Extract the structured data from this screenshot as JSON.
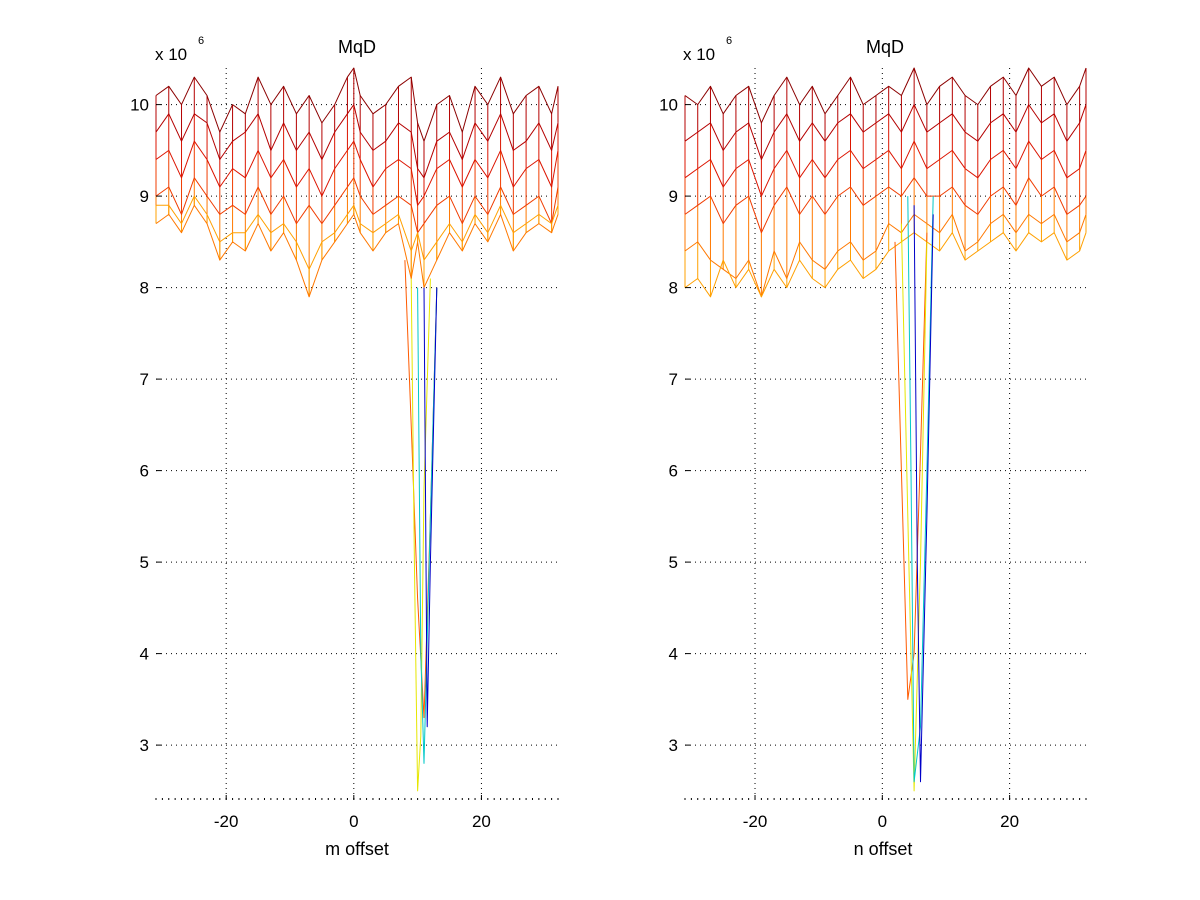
{
  "chart_data": [
    {
      "type": "line",
      "title": "MqD",
      "xlabel": "m offset",
      "ylabel": "",
      "y_exponent_prefix": "x 10",
      "y_exponent_power": "6",
      "xlim": [
        -31,
        32
      ],
      "ylim": [
        2.4,
        10.4
      ],
      "x_ticks": [
        -20,
        0,
        20
      ],
      "x_tick_labels": [
        "-20",
        "0",
        "20"
      ],
      "y_ticks": [
        3,
        4,
        5,
        6,
        7,
        8,
        9,
        10
      ],
      "y_tick_labels": [
        "3",
        "4",
        "5",
        "6",
        "7",
        "8",
        "9",
        "10"
      ],
      "grid": true,
      "colormap": "jet",
      "surface_trough": {
        "min_x": 10,
        "min_y": 2.5,
        "trough_x_range": [
          8,
          13
        ]
      },
      "profile_lines": [
        {
          "x": [
            -31,
            -29,
            -27,
            -25,
            -23,
            -21,
            -19,
            -17,
            -15,
            -13,
            -11,
            -9,
            -7,
            -5,
            -3,
            -1,
            0,
            1,
            3,
            5,
            7,
            9,
            10,
            11,
            13,
            15,
            17,
            19,
            21,
            23,
            25,
            27,
            29,
            31,
            32
          ],
          "y": [
            10.1,
            10.2,
            10.0,
            10.3,
            10.1,
            9.7,
            10.0,
            9.9,
            10.3,
            10.0,
            10.2,
            9.9,
            10.1,
            9.8,
            10.0,
            10.3,
            10.4,
            10.1,
            9.9,
            10.0,
            10.2,
            10.3,
            9.8,
            9.6,
            10.0,
            10.1,
            9.7,
            10.2,
            10.0,
            10.3,
            9.9,
            10.1,
            10.2,
            9.9,
            10.2
          ],
          "color": "#8b0000"
        },
        {
          "x": [
            -31,
            -29,
            -27,
            -25,
            -23,
            -21,
            -19,
            -17,
            -15,
            -13,
            -11,
            -9,
            -7,
            -5,
            -3,
            -1,
            0,
            1,
            3,
            5,
            7,
            9,
            10,
            11,
            13,
            15,
            17,
            19,
            21,
            23,
            25,
            27,
            29,
            31,
            32
          ],
          "y": [
            9.7,
            9.9,
            9.6,
            9.9,
            9.8,
            9.4,
            9.6,
            9.7,
            9.9,
            9.5,
            9.8,
            9.5,
            9.7,
            9.4,
            9.7,
            9.9,
            10.0,
            9.7,
            9.5,
            9.6,
            9.8,
            9.7,
            9.3,
            9.2,
            9.6,
            9.7,
            9.4,
            9.8,
            9.6,
            9.9,
            9.5,
            9.6,
            9.8,
            9.5,
            9.8
          ],
          "color": "#b40000"
        },
        {
          "x": [
            -31,
            -29,
            -27,
            -25,
            -23,
            -21,
            -19,
            -17,
            -15,
            -13,
            -11,
            -9,
            -7,
            -5,
            -3,
            -1,
            0,
            1,
            3,
            5,
            7,
            9,
            10,
            11,
            13,
            15,
            17,
            19,
            21,
            23,
            25,
            27,
            29,
            31,
            32
          ],
          "y": [
            9.4,
            9.5,
            9.2,
            9.6,
            9.4,
            9.1,
            9.3,
            9.2,
            9.5,
            9.2,
            9.4,
            9.1,
            9.3,
            9.0,
            9.3,
            9.5,
            9.6,
            9.4,
            9.1,
            9.3,
            9.4,
            9.3,
            8.9,
            9.0,
            9.3,
            9.4,
            9.1,
            9.4,
            9.2,
            9.5,
            9.1,
            9.3,
            9.4,
            9.1,
            9.5
          ],
          "color": "#dc1400"
        },
        {
          "x": [
            -31,
            -29,
            -27,
            -25,
            -23,
            -21,
            -19,
            -17,
            -15,
            -13,
            -11,
            -9,
            -7,
            -5,
            -3,
            -1,
            0,
            1,
            3,
            5,
            7,
            9,
            10,
            11,
            13,
            15,
            17,
            19,
            21,
            23,
            25,
            27,
            29,
            31,
            32
          ],
          "y": [
            9.0,
            9.1,
            8.8,
            9.2,
            9.0,
            8.8,
            8.9,
            8.8,
            9.1,
            8.8,
            9.0,
            8.7,
            8.9,
            8.7,
            8.9,
            9.1,
            9.2,
            9.0,
            8.8,
            8.9,
            9.0,
            8.9,
            8.6,
            8.7,
            8.9,
            9.0,
            8.7,
            9.0,
            8.8,
            9.1,
            8.8,
            8.9,
            9.0,
            8.7,
            9.1
          ],
          "color": "#f03c00"
        },
        {
          "x": [
            -31,
            -29,
            -27,
            -25,
            -23,
            -21,
            -19,
            -17,
            -15,
            -13,
            -11,
            -9,
            -7,
            -5,
            -3,
            -1,
            0,
            1,
            3,
            5,
            7,
            9,
            10,
            11,
            13,
            15,
            17,
            19,
            21,
            23,
            25,
            27,
            29,
            31,
            32
          ],
          "y": [
            8.7,
            8.8,
            8.6,
            8.9,
            8.7,
            8.3,
            8.5,
            8.4,
            8.7,
            8.4,
            8.6,
            8.3,
            7.9,
            8.3,
            8.5,
            8.7,
            8.8,
            8.6,
            8.4,
            8.6,
            8.7,
            8.1,
            8.5,
            8.0,
            8.3,
            8.6,
            8.4,
            8.7,
            8.5,
            8.8,
            8.4,
            8.6,
            8.7,
            8.6,
            8.8
          ],
          "color": "#ff7800"
        },
        {
          "x": [
            -31,
            -29,
            -27,
            -25,
            -23,
            -21,
            -19,
            -17,
            -15,
            -13,
            -11,
            -9,
            -7,
            -5,
            -3,
            -1,
            0,
            1,
            3,
            5,
            7,
            9,
            10,
            11,
            13,
            15,
            17,
            19,
            21,
            23,
            25,
            27,
            29,
            31,
            32
          ],
          "y": [
            8.9,
            8.9,
            8.7,
            9.0,
            8.8,
            8.5,
            8.6,
            8.6,
            8.8,
            8.6,
            8.7,
            8.5,
            8.2,
            8.5,
            8.6,
            8.8,
            8.9,
            8.7,
            8.6,
            8.7,
            8.8,
            8.4,
            8.6,
            8.3,
            8.5,
            8.7,
            8.5,
            8.8,
            8.6,
            8.9,
            8.6,
            8.7,
            8.8,
            8.7,
            8.9
          ],
          "color": "#ffa000"
        }
      ],
      "trough_lines": [
        {
          "x": [
            8,
            9,
            10,
            11,
            12,
            13
          ],
          "y": [
            8.3,
            6.5,
            4.6,
            3.3,
            5.5,
            8.0
          ],
          "color": "#ff5a00"
        },
        {
          "x": [
            9,
            9.5,
            10,
            10.5,
            11,
            12
          ],
          "y": [
            8.1,
            5.0,
            2.5,
            3.1,
            5.8,
            8.1
          ],
          "color": "#e6e600"
        },
        {
          "x": [
            10,
            10.5,
            11,
            12,
            13
          ],
          "y": [
            8.0,
            4.0,
            2.8,
            5.5,
            8.0
          ],
          "color": "#00c8c8"
        },
        {
          "x": [
            11,
            11.5,
            12,
            13
          ],
          "y": [
            8.0,
            3.2,
            5.0,
            8.0
          ],
          "color": "#0000c8"
        }
      ]
    },
    {
      "type": "line",
      "title": "MqD",
      "xlabel": "n offset",
      "ylabel": "",
      "y_exponent_prefix": "x 10",
      "y_exponent_power": "6",
      "xlim": [
        -31,
        32
      ],
      "ylim": [
        2.4,
        10.4
      ],
      "x_ticks": [
        -20,
        0,
        20
      ],
      "x_tick_labels": [
        "-20",
        "0",
        "20"
      ],
      "y_ticks": [
        3,
        4,
        5,
        6,
        7,
        8,
        9,
        10
      ],
      "y_tick_labels": [
        "3",
        "4",
        "5",
        "6",
        "7",
        "8",
        "9",
        "10"
      ],
      "grid": true,
      "colormap": "jet",
      "surface_trough": {
        "min_x": 5,
        "min_y": 2.5,
        "trough_x_range": [
          2,
          8
        ]
      },
      "profile_lines": [
        {
          "x": [
            -31,
            -29,
            -27,
            -25,
            -23,
            -21,
            -19,
            -17,
            -15,
            -13,
            -11,
            -9,
            -7,
            -5,
            -3,
            -1,
            1,
            3,
            5,
            7,
            9,
            11,
            13,
            15,
            17,
            19,
            21,
            23,
            25,
            27,
            29,
            31,
            32
          ],
          "y": [
            10.1,
            10.0,
            10.2,
            9.9,
            10.1,
            10.2,
            9.8,
            10.1,
            10.3,
            10.0,
            10.2,
            9.9,
            10.1,
            10.3,
            10.0,
            10.1,
            10.2,
            10.1,
            10.4,
            10.0,
            10.2,
            10.3,
            10.1,
            10.0,
            10.2,
            10.3,
            10.1,
            10.4,
            10.2,
            10.3,
            10.0,
            10.2,
            10.4
          ],
          "color": "#8b0000"
        },
        {
          "x": [
            -31,
            -29,
            -27,
            -25,
            -23,
            -21,
            -19,
            -17,
            -15,
            -13,
            -11,
            -9,
            -7,
            -5,
            -3,
            -1,
            1,
            3,
            5,
            7,
            9,
            11,
            13,
            15,
            17,
            19,
            21,
            23,
            25,
            27,
            29,
            31,
            32
          ],
          "y": [
            9.6,
            9.7,
            9.8,
            9.5,
            9.7,
            9.8,
            9.4,
            9.7,
            9.9,
            9.6,
            9.8,
            9.6,
            9.8,
            9.9,
            9.7,
            9.8,
            9.9,
            9.7,
            10.0,
            9.7,
            9.8,
            9.9,
            9.7,
            9.6,
            9.8,
            9.9,
            9.7,
            10.0,
            9.8,
            9.9,
            9.6,
            9.8,
            10.0
          ],
          "color": "#b40000"
        },
        {
          "x": [
            -31,
            -29,
            -27,
            -25,
            -23,
            -21,
            -19,
            -17,
            -15,
            -13,
            -11,
            -9,
            -7,
            -5,
            -3,
            -1,
            1,
            3,
            5,
            7,
            9,
            11,
            13,
            15,
            17,
            19,
            21,
            23,
            25,
            27,
            29,
            31,
            32
          ],
          "y": [
            9.2,
            9.3,
            9.4,
            9.1,
            9.3,
            9.4,
            9.0,
            9.3,
            9.5,
            9.2,
            9.4,
            9.2,
            9.4,
            9.5,
            9.3,
            9.4,
            9.5,
            9.3,
            9.6,
            9.3,
            9.4,
            9.5,
            9.3,
            9.2,
            9.4,
            9.5,
            9.3,
            9.6,
            9.4,
            9.5,
            9.2,
            9.3,
            9.5
          ],
          "color": "#dc1400"
        },
        {
          "x": [
            -31,
            -29,
            -27,
            -25,
            -23,
            -21,
            -19,
            -17,
            -15,
            -13,
            -11,
            -9,
            -7,
            -5,
            -3,
            -1,
            1,
            3,
            5,
            7,
            9,
            11,
            13,
            15,
            17,
            19,
            21,
            23,
            25,
            27,
            29,
            31,
            32
          ],
          "y": [
            8.8,
            8.9,
            9.0,
            8.7,
            8.9,
            9.0,
            8.6,
            8.9,
            9.1,
            8.8,
            9.0,
            8.8,
            9.0,
            9.1,
            8.9,
            9.0,
            9.1,
            9.0,
            9.2,
            9.0,
            9.0,
            9.1,
            8.9,
            8.8,
            9.0,
            9.1,
            8.9,
            9.2,
            9.0,
            9.1,
            8.8,
            8.9,
            9.0
          ],
          "color": "#f03c00"
        },
        {
          "x": [
            -31,
            -29,
            -27,
            -25,
            -23,
            -21,
            -19,
            -17,
            -15,
            -13,
            -11,
            -9,
            -7,
            -5,
            -3,
            -1,
            1,
            3,
            5,
            7,
            9,
            11,
            13,
            15,
            17,
            19,
            21,
            23,
            25,
            27,
            29,
            31,
            32
          ],
          "y": [
            8.4,
            8.5,
            8.3,
            8.2,
            8.1,
            8.3,
            7.9,
            8.4,
            8.1,
            8.5,
            8.3,
            8.2,
            8.4,
            8.5,
            8.3,
            8.4,
            8.7,
            8.6,
            8.8,
            8.7,
            8.6,
            8.8,
            8.4,
            8.5,
            8.7,
            8.8,
            8.6,
            8.8,
            8.7,
            8.8,
            8.5,
            8.6,
            8.8
          ],
          "color": "#ff7800"
        },
        {
          "x": [
            -31,
            -29,
            -27,
            -25,
            -23,
            -21,
            -19,
            -17,
            -15,
            -13,
            -11,
            -9,
            -7,
            -5,
            -3,
            -1,
            1,
            3,
            5,
            7,
            9,
            11,
            13,
            15,
            17,
            19,
            21,
            23,
            25,
            27,
            29,
            31,
            32
          ],
          "y": [
            8.0,
            8.1,
            7.9,
            8.3,
            8.0,
            8.2,
            7.9,
            8.2,
            8.0,
            8.3,
            8.1,
            8.0,
            8.2,
            8.3,
            8.1,
            8.2,
            8.4,
            8.5,
            8.6,
            8.5,
            8.4,
            8.6,
            8.3,
            8.4,
            8.5,
            8.6,
            8.4,
            8.6,
            8.5,
            8.6,
            8.3,
            8.4,
            8.6
          ],
          "color": "#ffa000"
        }
      ],
      "trough_lines": [
        {
          "x": [
            2,
            3,
            4,
            5,
            6,
            7
          ],
          "y": [
            8.5,
            6.0,
            3.5,
            4.0,
            6.2,
            8.6
          ],
          "color": "#ff5a00"
        },
        {
          "x": [
            3,
            4,
            5,
            6,
            7
          ],
          "y": [
            8.7,
            5.5,
            2.5,
            5.0,
            8.5
          ],
          "color": "#e6e600"
        },
        {
          "x": [
            4,
            4.5,
            5,
            6,
            7,
            8
          ],
          "y": [
            9.0,
            6.0,
            2.6,
            3.2,
            6.0,
            9.0
          ],
          "color": "#00c8c8"
        },
        {
          "x": [
            5,
            5.5,
            6,
            7,
            8
          ],
          "y": [
            8.9,
            5.0,
            2.6,
            5.5,
            8.8
          ],
          "color": "#0000c8"
        }
      ]
    }
  ]
}
